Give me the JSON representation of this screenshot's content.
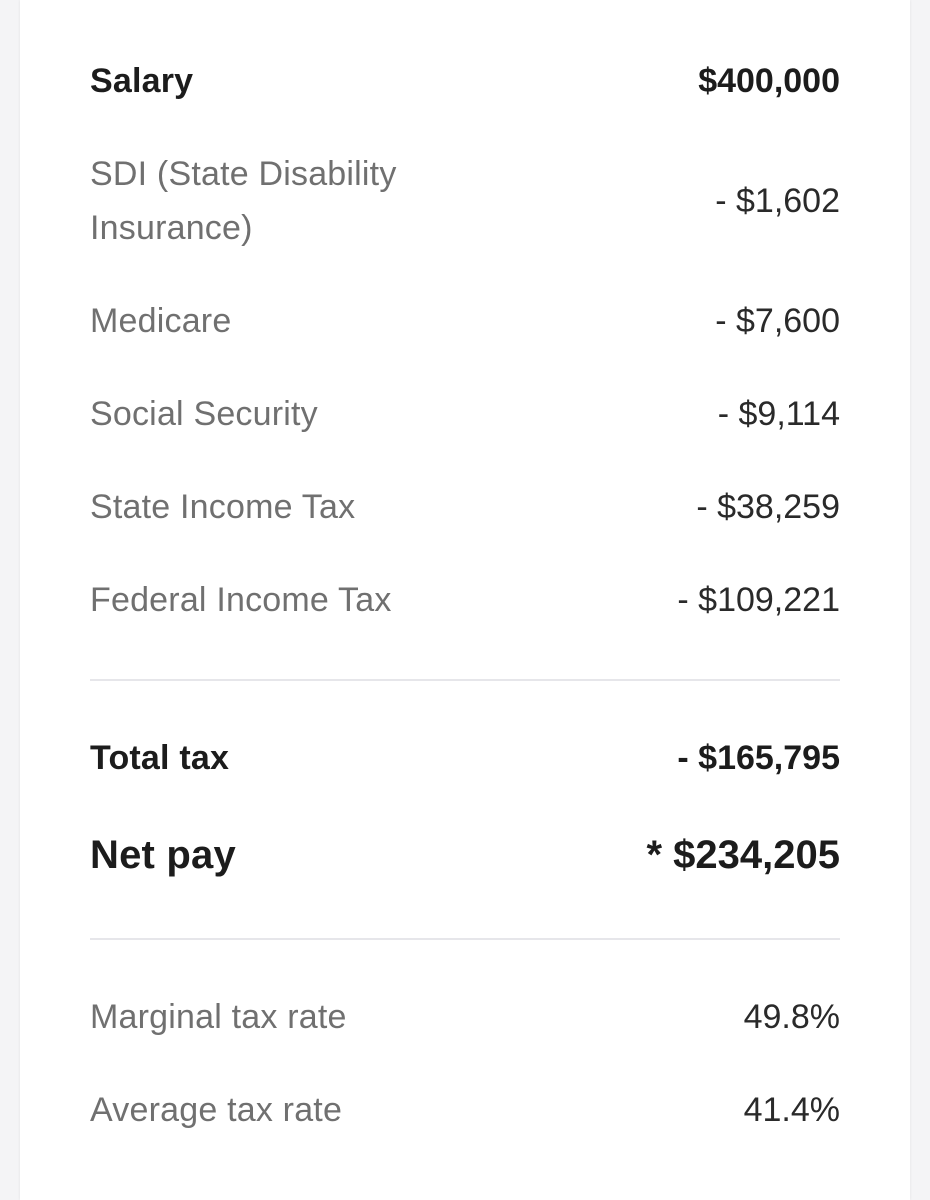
{
  "rows": [
    {
      "label": "Salary",
      "value": "$400,000"
    },
    {
      "label": "SDI (State Disability Insurance)",
      "value": "- $1,602"
    },
    {
      "label": "Medicare",
      "value": "- $7,600"
    },
    {
      "label": "Social Security",
      "value": "- $9,114"
    },
    {
      "label": "State Income Tax",
      "value": "- $38,259"
    },
    {
      "label": "Federal Income Tax",
      "value": "- $109,221"
    }
  ],
  "totals": {
    "total_tax_label": "Total tax",
    "total_tax_value": "- $165,795",
    "net_pay_label": "Net pay",
    "net_pay_value": "* $234,205"
  },
  "rates": {
    "marginal_label": "Marginal tax rate",
    "marginal_value": "49.8%",
    "average_label": "Average tax rate",
    "average_value": "41.4%"
  }
}
